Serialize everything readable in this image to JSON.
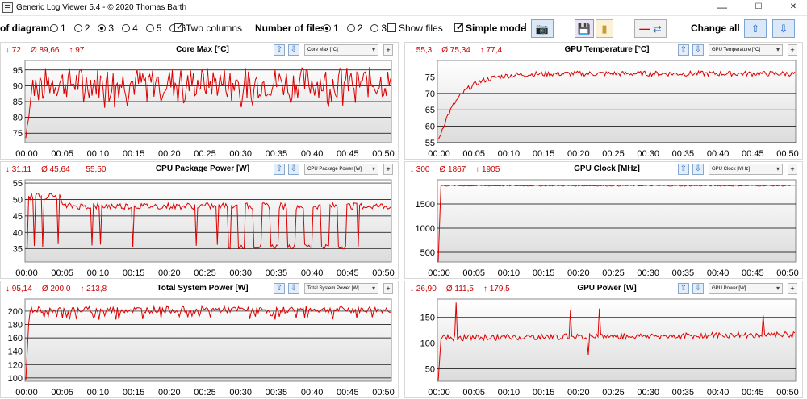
{
  "window": {
    "title": "Generic Log Viewer 5.4 - © 2020 Thomas Barth",
    "minimize": "—",
    "maximize": "☐",
    "close": "✕"
  },
  "toolbar": {
    "diagrams_label": "of diagrams",
    "diagram_options": [
      "1",
      "2",
      "3",
      "4",
      "5",
      "6"
    ],
    "diagram_selected": "3",
    "two_columns_label": "Two columns",
    "two_columns_checked": true,
    "files_label": "Number of files",
    "file_options": [
      "1",
      "2",
      "3"
    ],
    "file_selected": "1",
    "show_files_label": "Show files",
    "show_files_checked": false,
    "simple_mode_label": "Simple mode",
    "simple_mode_checked": true,
    "change_all_label": "Change all",
    "icons": [
      "camera-icon",
      "save-icon",
      "folder-icon",
      "line-swap-icon",
      "arrow-up-icon",
      "arrow-down-icon"
    ]
  },
  "panels": [
    {
      "title": "Core Max [°C]",
      "min": "72",
      "avg": "89,66",
      "max": "97",
      "select": "Core Max [°C]",
      "ylim": [
        72,
        98
      ],
      "yticks": [
        75,
        80,
        85,
        90,
        95
      ],
      "type": "noisy",
      "base": 91,
      "noise": 5,
      "dips": [
        84,
        85,
        86,
        84,
        85
      ],
      "dipRate": 0.08,
      "start": 72,
      "rampEnd": 0.02
    },
    {
      "title": "GPU Temperature [°C]",
      "min": "55,3",
      "avg": "75,34",
      "max": "77,4",
      "select": "GPU Temperature [°C]",
      "ylim": [
        55,
        80
      ],
      "yticks": [
        55,
        60,
        65,
        70,
        75
      ],
      "type": "warm",
      "start": 55.3,
      "plateau": 76,
      "noise": 0.8
    },
    {
      "title": "CPU Package Power [W]",
      "min": "31,11",
      "avg": "45,64",
      "max": "55,50",
      "select": "CPU Package Power [W]",
      "ylim": [
        31,
        56
      ],
      "yticks": [
        35,
        40,
        45,
        50,
        55
      ],
      "type": "square",
      "base": 48,
      "low": 35,
      "noise": 1
    },
    {
      "title": "GPU Clock [MHz]",
      "min": "300",
      "avg": "1867",
      "max": "1905",
      "select": "GPU Clock [MHz]",
      "ylim": [
        300,
        2000
      ],
      "yticks": [
        500,
        1000,
        1500
      ],
      "type": "flat",
      "start": 300,
      "base": 1880,
      "noise": 12
    },
    {
      "title": "Total System Power [W]",
      "min": "95,14",
      "avg": "200,0",
      "max": "213,8",
      "select": "Total System Power [W]",
      "ylim": [
        95,
        218
      ],
      "yticks": [
        100,
        120,
        140,
        160,
        180,
        200
      ],
      "type": "noisy",
      "base": 202,
      "noise": 5,
      "dips": [
        190,
        188,
        192
      ],
      "dipRate": 0.1,
      "start": 95,
      "rampEnd": 0.01
    },
    {
      "title": "GPU Power [W]",
      "min": "26,90",
      "avg": "111,5",
      "max": "179,5",
      "select": "GPU Power [W]",
      "ylim": [
        26,
        185
      ],
      "yticks": [
        50,
        100,
        150
      ],
      "type": "gpu",
      "start": 27,
      "base": 110,
      "noise": 6
    }
  ],
  "xticks": [
    "00:00",
    "00:05",
    "00:10",
    "00:15",
    "00:20",
    "00:25",
    "00:30",
    "00:35",
    "00:40",
    "00:45",
    "00:50"
  ],
  "colors": {
    "line": "#dd0000",
    "stats": "#cc0000",
    "grid": "#000000"
  }
}
